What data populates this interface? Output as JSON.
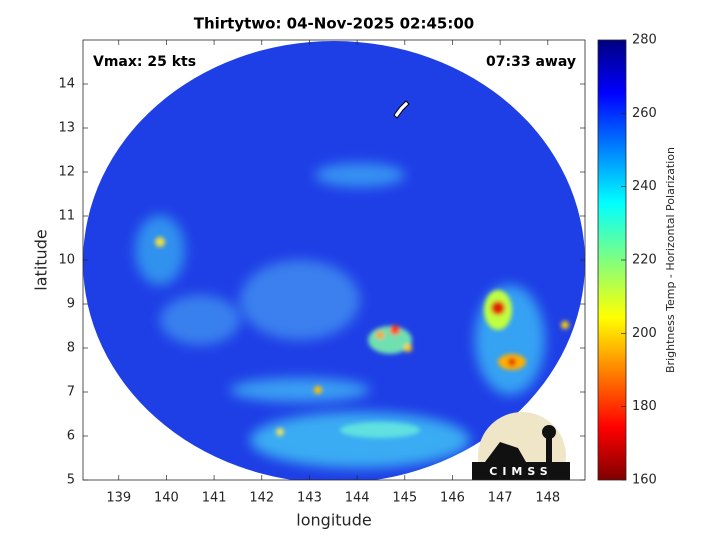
{
  "chart_data": {
    "type": "image",
    "title": "Thirtytwo: 04-Nov-2025 02:45:00",
    "annotations": {
      "left": "Vmax: 25 kts",
      "right": "07:33 away"
    },
    "xlabel": "longitude",
    "ylabel": "latitude",
    "xlim": [
      138.25,
      148.78
    ],
    "xticks": [
      139,
      140,
      141,
      142,
      143,
      144,
      145,
      146,
      147,
      148
    ],
    "ylim": [
      5,
      15
    ],
    "yticks": [
      5,
      6,
      7,
      8,
      9,
      10,
      11,
      12,
      13,
      14
    ],
    "colorbar": {
      "label": "Brightness Temp - Horizontal Polarization",
      "lim": [
        160,
        280
      ],
      "ticks": [
        160,
        180,
        200,
        220,
        240,
        260,
        280
      ]
    },
    "logo": "CIMSS"
  }
}
